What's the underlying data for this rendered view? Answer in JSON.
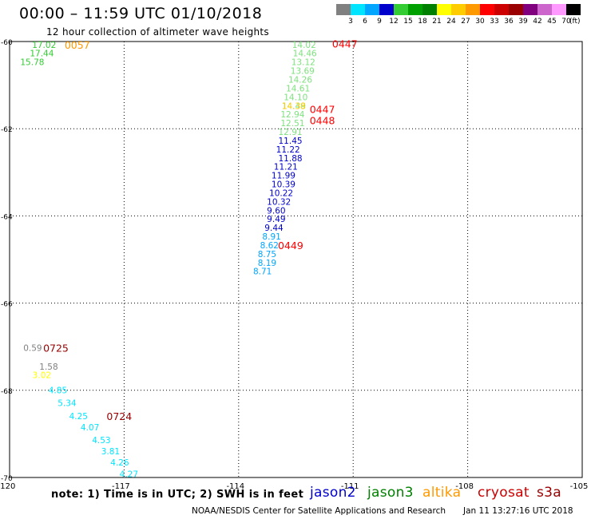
{
  "header": {
    "title": "00:00 – 11:59 UTC 01/10/2018",
    "subtitle": "12 hour collection of altimeter wave heights"
  },
  "legend": {
    "colors": [
      "#808080",
      "#00e5ff",
      "#00a6ff",
      "#0000cc",
      "#33cc33",
      "#00a000",
      "#008000",
      "#ffff00",
      "#ffcc00",
      "#ff9900",
      "#ff0000",
      "#cc0000",
      "#990000",
      "#800080",
      "#cc66cc",
      "#ff99ff",
      "#000000"
    ],
    "ticks": [
      "3",
      "6",
      "9",
      "12",
      "15",
      "18",
      "21",
      "24",
      "27",
      "30",
      "33",
      "36",
      "39",
      "42",
      "45",
      "70"
    ],
    "units": "(ft)"
  },
  "map": {
    "lon_range": [
      -120,
      -105
    ],
    "lat_range": [
      -70,
      -60
    ],
    "x_ticks": [
      "-120",
      "-117",
      "-114",
      "-111",
      "-108",
      "-105"
    ],
    "y_ticks": [
      "-60",
      "-62",
      "-64",
      "-66",
      "-68",
      "-70"
    ],
    "grid": "dotted",
    "observations": [
      {
        "label": "17.02",
        "color": "#33cc33",
        "lon": -119.41,
        "lat": -60.07
      },
      {
        "label": "17.44",
        "color": "#33cc33",
        "lon": -119.47,
        "lat": -60.27
      },
      {
        "label": "15.78",
        "color": "#33cc33",
        "lon": -119.72,
        "lat": -60.47
      },
      {
        "label": "14.02",
        "color": "#7ee27e",
        "lon": -112.6,
        "lat": -60.07
      },
      {
        "label": "14.46",
        "color": "#7ee27e",
        "lon": -112.58,
        "lat": -60.27
      },
      {
        "label": "13.12",
        "color": "#7ee27e",
        "lon": -112.62,
        "lat": -60.47
      },
      {
        "label": "13.69",
        "color": "#7ee27e",
        "lon": -112.64,
        "lat": -60.67
      },
      {
        "label": "14.26",
        "color": "#7ee27e",
        "lon": -112.7,
        "lat": -60.87
      },
      {
        "label": "14.61",
        "color": "#7ee27e",
        "lon": -112.76,
        "lat": -61.07
      },
      {
        "label": "14.10",
        "color": "#7ee27e",
        "lon": -112.82,
        "lat": -61.27
      },
      {
        "label": "14.49",
        "color": "#7ee27e",
        "lon": -112.87,
        "lat": -61.47
      },
      {
        "label": "14.38",
        "color": "#ffcc00",
        "lon": -112.87,
        "lat": -61.47
      },
      {
        "label": "12.94",
        "color": "#7ee27e",
        "lon": -112.9,
        "lat": -61.67
      },
      {
        "label": "12.51",
        "color": "#7ee27e",
        "lon": -112.9,
        "lat": -61.87
      },
      {
        "label": "12.91",
        "color": "#7ee27e",
        "lon": -112.96,
        "lat": -62.07
      },
      {
        "label": "11.45",
        "color": "#0000cc",
        "lon": -112.96,
        "lat": -62.27
      },
      {
        "label": "11.22",
        "color": "#0000cc",
        "lon": -113.02,
        "lat": -62.47
      },
      {
        "label": "11.88",
        "color": "#0000cc",
        "lon": -112.96,
        "lat": -62.67
      },
      {
        "label": "11.21",
        "color": "#0000cc",
        "lon": -113.08,
        "lat": -62.87
      },
      {
        "label": "11.99",
        "color": "#0000cc",
        "lon": -113.14,
        "lat": -63.07
      },
      {
        "label": "10.39",
        "color": "#0000cc",
        "lon": -113.14,
        "lat": -63.27
      },
      {
        "label": "10.22",
        "color": "#0000cc",
        "lon": -113.2,
        "lat": -63.47
      },
      {
        "label": "10.32",
        "color": "#0000cc",
        "lon": -113.26,
        "lat": -63.67
      },
      {
        "label": "9.60",
        "color": "#0000cc",
        "lon": -113.26,
        "lat": -63.87
      },
      {
        "label": "9.49",
        "color": "#0000cc",
        "lon": -113.26,
        "lat": -64.07
      },
      {
        "label": "9.44",
        "color": "#0000cc",
        "lon": -113.32,
        "lat": -64.27
      },
      {
        "label": "8.91",
        "color": "#00a6ff",
        "lon": -113.38,
        "lat": -64.47
      },
      {
        "label": "8.62",
        "color": "#00a6ff",
        "lon": -113.44,
        "lat": -64.67
      },
      {
        "label": "8.75",
        "color": "#00a6ff",
        "lon": -113.5,
        "lat": -64.87
      },
      {
        "label": "8.19",
        "color": "#00a6ff",
        "lon": -113.5,
        "lat": -65.07
      },
      {
        "label": "8.71",
        "color": "#00a6ff",
        "lon": -113.62,
        "lat": -65.27
      },
      {
        "label": "0.59",
        "color": "#808080",
        "lon": -119.64,
        "lat": -67.02
      },
      {
        "label": "1.58",
        "color": "#808080",
        "lon": -119.22,
        "lat": -67.45
      },
      {
        "label": "3.02",
        "color": "#ffff00",
        "lon": -119.4,
        "lat": -67.65
      },
      {
        "label": "4.85",
        "color": "#00e5ff",
        "lon": -118.98,
        "lat": -67.99
      },
      {
        "label": "5.34",
        "color": "#00e5ff",
        "lon": -118.74,
        "lat": -68.29
      },
      {
        "label": "4.25",
        "color": "#00e5ff",
        "lon": -118.44,
        "lat": -68.59
      },
      {
        "label": "4.07",
        "color": "#00e5ff",
        "lon": -118.14,
        "lat": -68.85
      },
      {
        "label": "4.53",
        "color": "#00e5ff",
        "lon": -117.84,
        "lat": -69.14
      },
      {
        "label": "3.81",
        "color": "#00e5ff",
        "lon": -117.6,
        "lat": -69.4
      },
      {
        "label": "4.26",
        "color": "#00e5ff",
        "lon": -117.36,
        "lat": -69.65
      },
      {
        "label": "4.27",
        "color": "#00e5ff",
        "lon": -117.12,
        "lat": -69.92
      }
    ],
    "times": [
      {
        "label": "0057",
        "color": "#ff9900",
        "lon": -118.56,
        "lat": -60.07
      },
      {
        "label": "0447",
        "color": "#ff0000",
        "lon": -111.55,
        "lat": -60.05
      },
      {
        "label": "0447",
        "color": "#ff0000",
        "lon": -112.14,
        "lat": -61.55
      },
      {
        "label": "0448",
        "color": "#ff0000",
        "lon": -112.14,
        "lat": -61.8
      },
      {
        "label": "0449",
        "color": "#ff0000",
        "lon": -112.97,
        "lat": -64.67
      },
      {
        "label": "0725",
        "color": "#990000",
        "lon": -119.12,
        "lat": -67.02
      },
      {
        "label": "0724",
        "color": "#990000",
        "lon": -117.46,
        "lat": -68.59
      }
    ]
  },
  "footer": {
    "note": "note: 1) Time is in UTC; 2) SWH is in feet",
    "satellites": [
      {
        "name": "jason2",
        "color": "#0000cc"
      },
      {
        "name": "jason3",
        "color": "#008000"
      },
      {
        "name": "altika",
        "color": "#ff9900"
      },
      {
        "name": "cryosat",
        "color": "#cc0000"
      },
      {
        "name": "s3a",
        "color": "#990000"
      }
    ],
    "credit": "NOAA/NESDIS Center for Satellite Applications and Research",
    "timestamp": "Jan 11 13:27:16 UTC 2018"
  }
}
